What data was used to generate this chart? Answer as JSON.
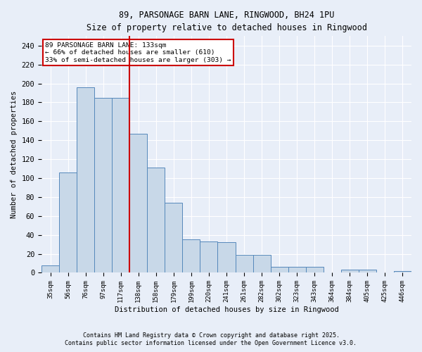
{
  "title_line1": "89, PARSONAGE BARN LANE, RINGWOOD, BH24 1PU",
  "title_line2": "Size of property relative to detached houses in Ringwood",
  "xlabel": "Distribution of detached houses by size in Ringwood",
  "ylabel": "Number of detached properties",
  "bar_labels": [
    "35sqm",
    "56sqm",
    "76sqm",
    "97sqm",
    "117sqm",
    "138sqm",
    "158sqm",
    "179sqm",
    "199sqm",
    "220sqm",
    "241sqm",
    "261sqm",
    "282sqm",
    "302sqm",
    "323sqm",
    "343sqm",
    "364sqm",
    "384sqm",
    "405sqm",
    "425sqm",
    "446sqm"
  ],
  "bar_values": [
    8,
    106,
    196,
    185,
    185,
    147,
    111,
    74,
    35,
    33,
    32,
    19,
    19,
    6,
    6,
    6,
    0,
    3,
    3,
    0,
    2
  ],
  "bar_color": "#c8d8e8",
  "bar_edge_color": "#5588bb",
  "background_color": "#e8eef8",
  "grid_color": "#ffffff",
  "vline_x": 5.0,
  "vline_color": "#cc0000",
  "annotation_title": "89 PARSONAGE BARN LANE: 133sqm",
  "annotation_line1": "← 66% of detached houses are smaller (610)",
  "annotation_line2": "33% of semi-detached houses are larger (303) →",
  "annotation_box_color": "#ffffff",
  "annotation_box_edge": "#cc0000",
  "ylim": [
    0,
    250
  ],
  "yticks": [
    0,
    20,
    40,
    60,
    80,
    100,
    120,
    140,
    160,
    180,
    200,
    220,
    240
  ],
  "footnote1": "Contains HM Land Registry data © Crown copyright and database right 2025.",
  "footnote2": "Contains public sector information licensed under the Open Government Licence v3.0."
}
